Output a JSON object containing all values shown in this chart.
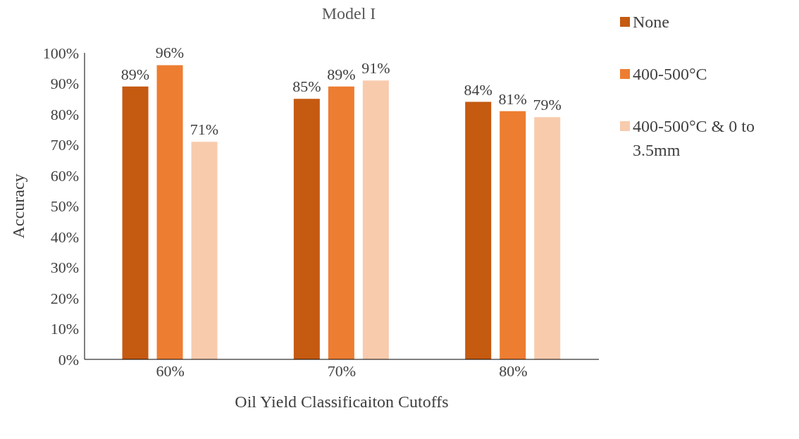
{
  "chart_data": {
    "type": "bar",
    "title": "Model I",
    "xlabel": "Oil Yield Classificaiton Cutoffs",
    "ylabel": "Accuracy",
    "categories": [
      "60%",
      "70%",
      "80%"
    ],
    "series": [
      {
        "name": "None",
        "color": "#c55a11",
        "values": [
          89,
          85,
          84
        ],
        "value_labels": [
          "89%",
          "85%",
          "84%"
        ]
      },
      {
        "name": "400-500°C",
        "color": "#ed7d31",
        "values": [
          96,
          89,
          81
        ],
        "value_labels": [
          "96%",
          "89%",
          "81%"
        ]
      },
      {
        "name": "400-500°C & 0 to 3.5mm",
        "color": "#f8cbad",
        "values": [
          71,
          91,
          79
        ],
        "value_labels": [
          "71%",
          "91%",
          "79%"
        ]
      }
    ],
    "ylim": [
      0,
      100
    ],
    "yticks": [
      {
        "value": 0,
        "label": "0%"
      },
      {
        "value": 10,
        "label": "10%"
      },
      {
        "value": 20,
        "label": "20%"
      },
      {
        "value": 30,
        "label": "30%"
      },
      {
        "value": 40,
        "label": "40%"
      },
      {
        "value": 50,
        "label": "50%"
      },
      {
        "value": 60,
        "label": "60%"
      },
      {
        "value": 70,
        "label": "70%"
      },
      {
        "value": 80,
        "label": "80%"
      },
      {
        "value": 90,
        "label": "90%"
      },
      {
        "value": 100,
        "label": "100%"
      }
    ],
    "grid": false,
    "legend": "right"
  }
}
